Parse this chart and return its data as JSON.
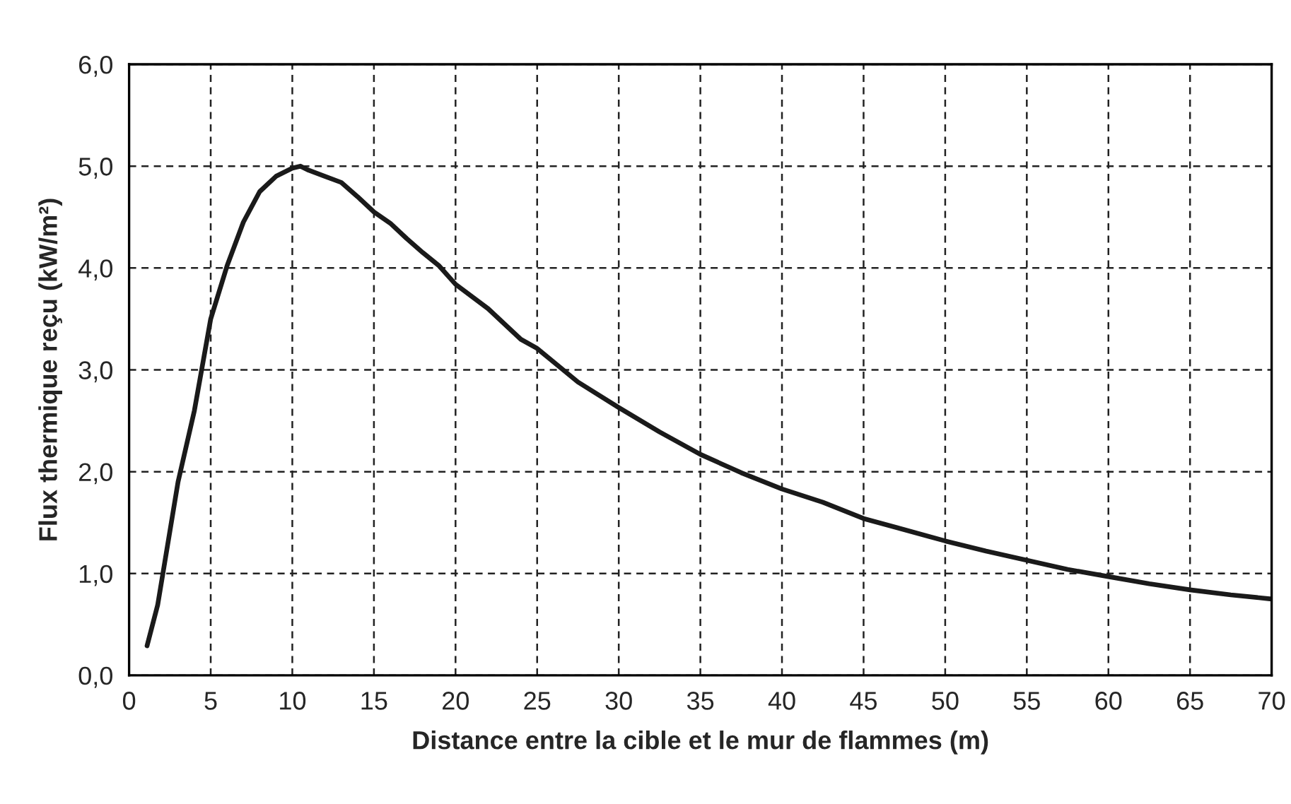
{
  "chart_data": {
    "type": "line",
    "xlabel": "Distance entre la cible et le mur de flammes (m)",
    "ylabel": "Flux thermique reçu (kW/m²)",
    "x": [
      1.1,
      1.75,
      3,
      4,
      5,
      6,
      7,
      8,
      9,
      10,
      10.5,
      11,
      12,
      13,
      14,
      15,
      16,
      17,
      18,
      19,
      20,
      22,
      24,
      25,
      27.5,
      30,
      32.5,
      35,
      37.5,
      40,
      42.5,
      45,
      47.5,
      50,
      52.5,
      55,
      57.5,
      60,
      62.5,
      65,
      67.5,
      70
    ],
    "series": [
      {
        "color": "#1a1a1a",
        "values": [
          0.29,
          0.69,
          1.9,
          2.6,
          3.5,
          4.02,
          4.45,
          4.75,
          4.9,
          4.98,
          5.0,
          4.96,
          4.9,
          4.84,
          4.7,
          4.55,
          4.44,
          4.29,
          4.15,
          4.02,
          3.84,
          3.6,
          3.3,
          3.21,
          2.88,
          2.63,
          2.39,
          2.17,
          1.99,
          1.83,
          1.7,
          1.54,
          1.43,
          1.32,
          1.22,
          1.13,
          1.04,
          0.97,
          0.9,
          0.84,
          0.79,
          0.75
        ]
      }
    ],
    "xlim": [
      0,
      70
    ],
    "xticks": [
      0,
      5,
      10,
      15,
      20,
      25,
      30,
      35,
      40,
      45,
      50,
      55,
      60,
      65,
      70
    ],
    "ylim": [
      0,
      6
    ],
    "yticks": [
      {
        "value": 0,
        "label": "0,0"
      },
      {
        "value": 1,
        "label": "1,0"
      },
      {
        "value": 2,
        "label": "2,0"
      },
      {
        "value": 3,
        "label": "3,0"
      },
      {
        "value": 4,
        "label": "4,0"
      },
      {
        "value": 5,
        "label": "5,0"
      },
      {
        "value": 6,
        "label": "6,0"
      }
    ],
    "grid": true,
    "marker": "none",
    "line_style": "solid"
  }
}
